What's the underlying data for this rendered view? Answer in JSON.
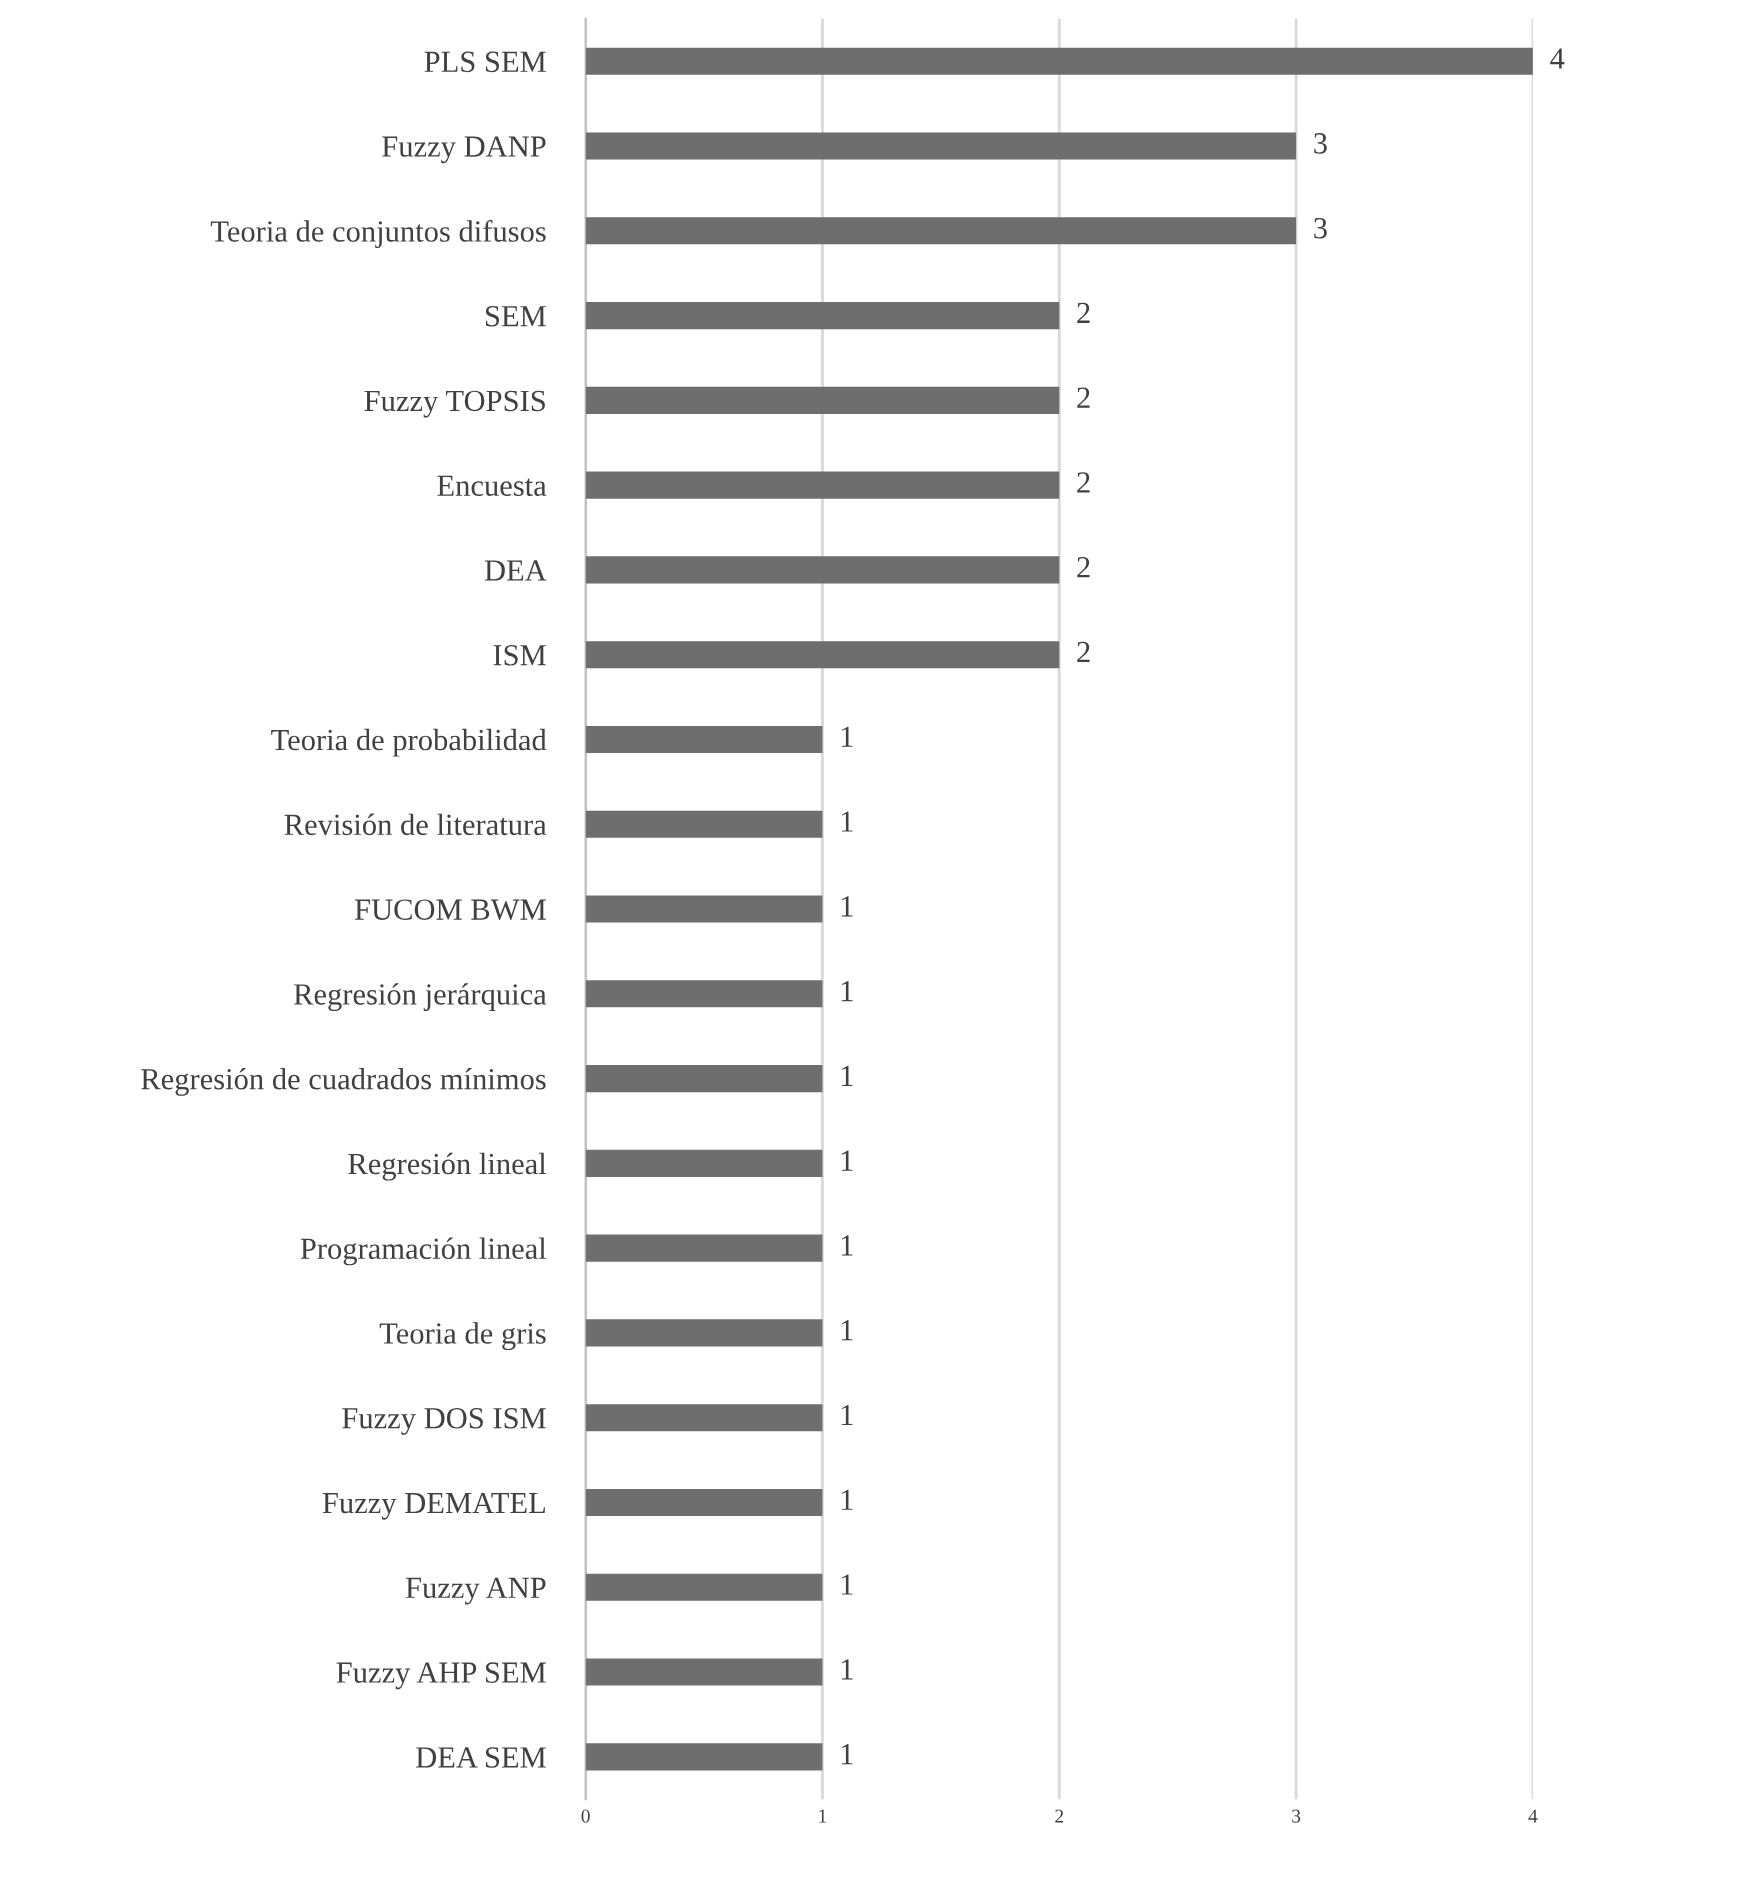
{
  "chart_data": {
    "type": "bar",
    "orientation": "horizontal",
    "categories": [
      "PLS SEM",
      "Fuzzy DANP",
      "Teoria de conjuntos difusos",
      "SEM",
      "Fuzzy TOPSIS",
      "Encuesta",
      "DEA",
      "ISM",
      "Teoria de probabilidad",
      "Revisión de literatura",
      "FUCOM BWM",
      "Regresión jerárquica",
      "Regresión de cuadrados mínimos",
      "Regresión lineal",
      "Programación lineal",
      "Teoria de gris",
      "Fuzzy DOS ISM",
      "Fuzzy DEMATEL",
      "Fuzzy ANP",
      "Fuzzy AHP SEM",
      "DEA SEM"
    ],
    "values": [
      4,
      3,
      3,
      2,
      2,
      2,
      2,
      2,
      1,
      1,
      1,
      1,
      1,
      1,
      1,
      1,
      1,
      1,
      1,
      1,
      1
    ],
    "color": "#6e6e6e",
    "xlim": [
      0,
      4
    ],
    "xticks": [
      0,
      1,
      2,
      3,
      4
    ],
    "grid": "x",
    "data_labels": true
  }
}
